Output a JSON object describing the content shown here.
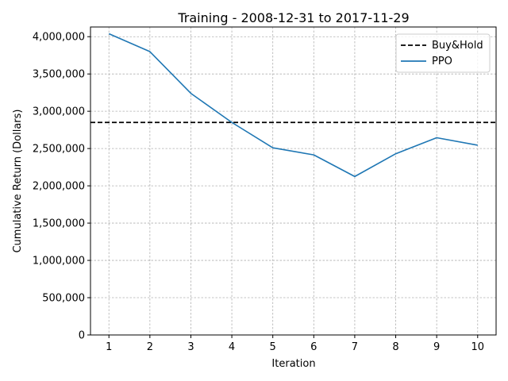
{
  "chart_data": {
    "type": "line",
    "title": "Training - 2008-12-31 to 2017-11-29",
    "xlabel": "Iteration",
    "ylabel": "Cumulative Return (Dollars)",
    "x": [
      1,
      2,
      3,
      4,
      5,
      6,
      7,
      8,
      9,
      10
    ],
    "xticks": [
      "1",
      "2",
      "3",
      "4",
      "5",
      "6",
      "7",
      "8",
      "9",
      "10"
    ],
    "xlim": [
      0.55,
      10.45
    ],
    "ylim": [
      0,
      4130000
    ],
    "yticks": [
      0,
      500000,
      1000000,
      1500000,
      2000000,
      2500000,
      3000000,
      3500000,
      4000000
    ],
    "ytick_labels": [
      "0",
      "500,000",
      "1,000,000",
      "1,500,000",
      "2,000,000",
      "2,500,000",
      "3,000,000",
      "3,500,000",
      "4,000,000"
    ],
    "grid": true,
    "legend_position": "top-right",
    "series": [
      {
        "name": "PPO",
        "style": "solid",
        "color": "#1f77b4",
        "values": [
          4040000,
          3800000,
          3240000,
          2850000,
          2510000,
          2415000,
          2125000,
          2430000,
          2645000,
          2545000
        ]
      }
    ],
    "hlines": [
      {
        "name": "Buy&Hold",
        "style": "dashed",
        "color": "#000000",
        "value": 2850000
      }
    ],
    "legend": [
      "Buy&Hold",
      "PPO"
    ]
  }
}
